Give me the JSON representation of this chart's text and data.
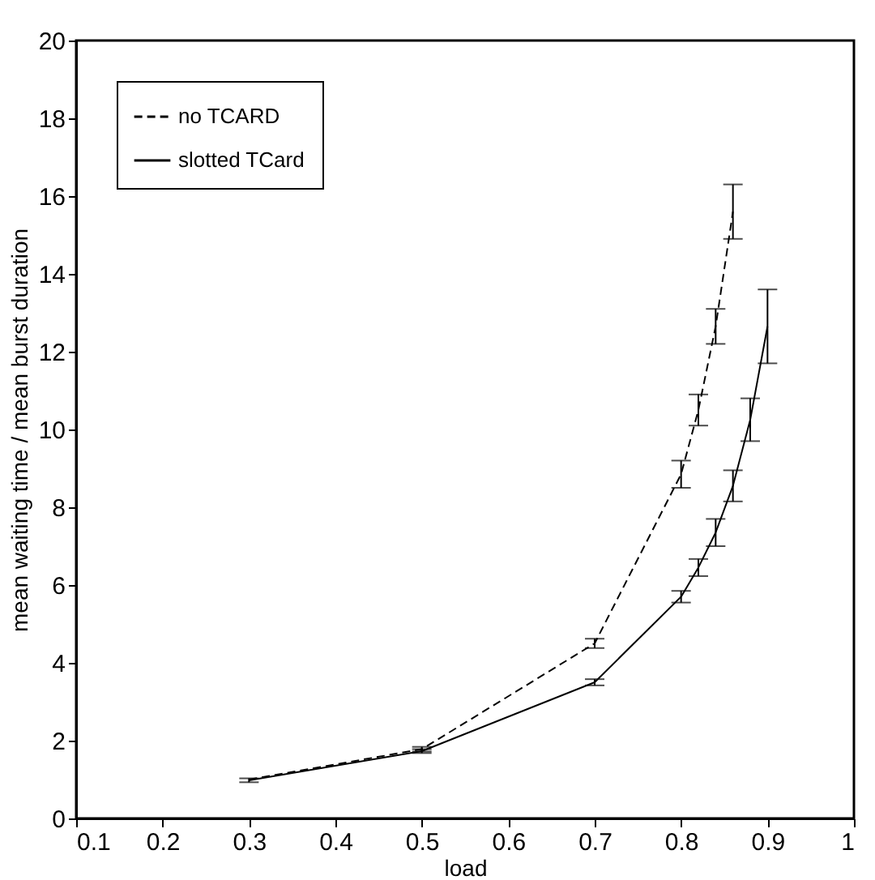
{
  "chart_data": {
    "type": "line",
    "xlabel": "load",
    "ylabel": "mean waiting time / mean burst duration",
    "x": [
      0.3,
      0.5,
      0.7,
      0.8,
      0.82,
      0.84,
      0.86,
      0.88,
      0.9
    ],
    "series": [
      {
        "name": "no TCARD",
        "color": "#000000",
        "line_style": "dashed",
        "x": [
          0.3,
          0.5,
          0.7,
          0.8,
          0.82,
          0.84,
          0.86
        ],
        "values": [
          1.0,
          1.78,
          4.5,
          8.85,
          10.5,
          12.65,
          15.6
        ],
        "errors": [
          null,
          0.06,
          0.12,
          0.35,
          0.4,
          0.45,
          0.7
        ]
      },
      {
        "name": "slotted TCard",
        "color": "#000000",
        "line_style": "solid",
        "values": [
          0.98,
          1.73,
          3.5,
          5.7,
          6.45,
          7.35,
          8.55,
          10.25,
          12.65
        ],
        "errors": [
          0.05,
          0.05,
          0.08,
          0.15,
          0.22,
          0.35,
          0.4,
          0.55,
          0.95
        ]
      }
    ],
    "xlim": [
      0.1,
      1
    ],
    "xticks": [
      0.1,
      0.2,
      0.3,
      0.4,
      0.5,
      0.6,
      0.7,
      0.8,
      0.9,
      1
    ],
    "ylim": [
      0,
      20
    ],
    "yticks": [
      0,
      2,
      4,
      6,
      8,
      10,
      12,
      14,
      16,
      18,
      20
    ],
    "legend": "top left",
    "grid": false,
    "marker": "none"
  }
}
